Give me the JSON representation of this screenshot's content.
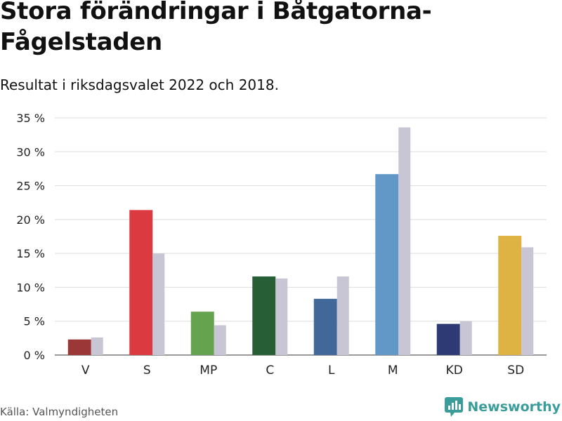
{
  "title": "Stora förändringar i Båtgatorna-Fågelstaden",
  "subtitle": "Resultat i riksdagsvalet 2022 och 2018.",
  "source": "Källa: Valmyndigheten",
  "brand": {
    "name": "Newsworthy",
    "icon": "bar-chart-logo-icon",
    "color": "#3a9d9a"
  },
  "colors": {
    "comparison": "#c8c6d4",
    "grid": "#dddddd"
  },
  "chart_data": {
    "type": "bar",
    "categories": [
      "V",
      "S",
      "MP",
      "C",
      "L",
      "M",
      "KD",
      "SD"
    ],
    "series": [
      {
        "name": "",
        "values": [
          2.3,
          21.4,
          6.4,
          11.6,
          8.3,
          26.7,
          4.6,
          17.6
        ],
        "colors": [
          "#9b3737",
          "#dc3a41",
          "#65a34f",
          "#275e36",
          "#42689a",
          "#6198c8",
          "#2e3a73",
          "#deb343"
        ]
      },
      {
        "name": "",
        "values": [
          2.6,
          15.0,
          4.4,
          11.3,
          11.6,
          33.6,
          5.0,
          15.9
        ],
        "color": "#c8c6d4"
      }
    ],
    "y_ticks": [
      0,
      5,
      10,
      15,
      20,
      25,
      30,
      35
    ],
    "y_tick_labels": [
      "0 %",
      "5 %",
      "10 %",
      "15 %",
      "20 %",
      "25 %",
      "30 %",
      "35 %"
    ],
    "ylim": [
      0,
      35
    ],
    "grid": true,
    "xlabel": "",
    "ylabel": ""
  }
}
